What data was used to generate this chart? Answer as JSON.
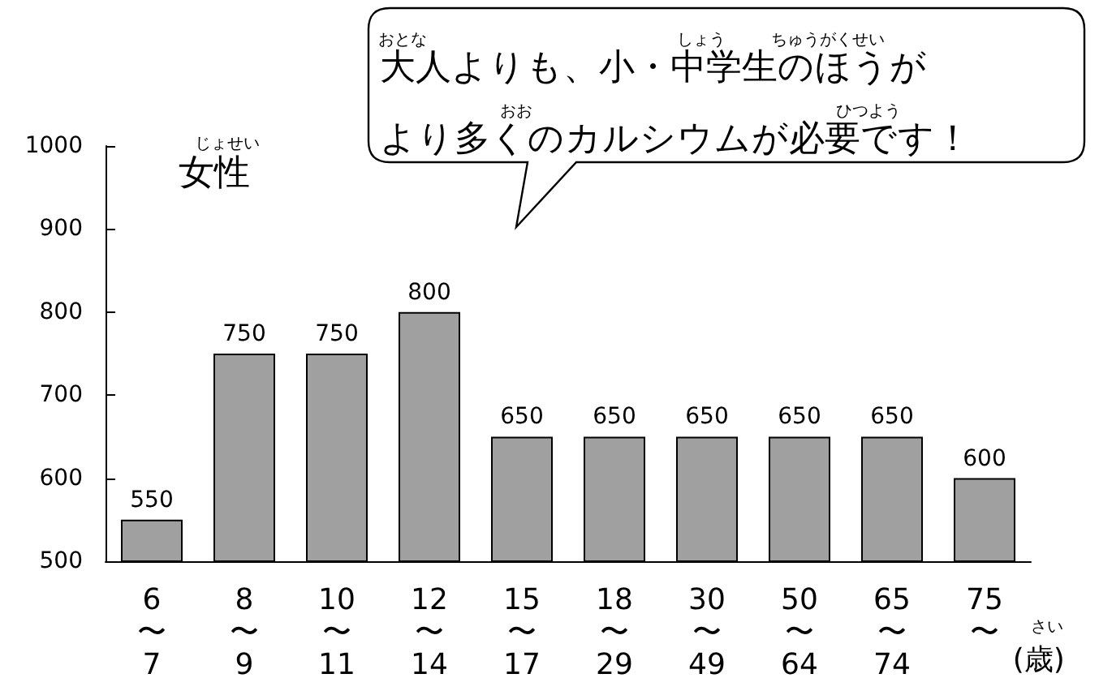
{
  "chart_data": {
    "type": "bar",
    "title": "女性",
    "xlabel": "(歳)",
    "categories": [
      "6\n〜\n7",
      "8\n〜\n9",
      "10\n〜\n11",
      "12\n〜\n14",
      "15\n〜\n17",
      "18\n〜\n29",
      "30\n〜\n49",
      "50\n〜\n64",
      "65\n〜\n74",
      "75\n〜"
    ],
    "values": [
      550,
      750,
      750,
      800,
      650,
      650,
      650,
      650,
      650,
      600
    ],
    "color": "#a0a0a0",
    "ylim": [
      500,
      1000
    ],
    "yticks": [
      500,
      600,
      700,
      800,
      900,
      1000
    ],
    "data_labels": true,
    "grid": false,
    "annotations": [
      "大人よりも、小・中学生のほうが",
      "より多くのカルシウムが必要です！",
      "じょせい",
      "おとな",
      "しょう",
      "ちゅうがくせい",
      "おお",
      "ひつよう",
      "さい"
    ]
  }
}
